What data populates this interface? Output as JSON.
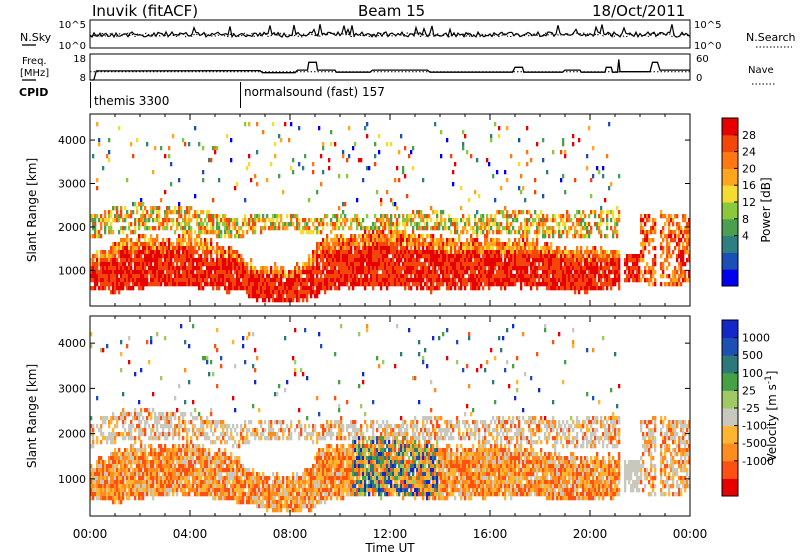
{
  "header": {
    "station": "Inuvik (fitACF)",
    "beam": "Beam 15",
    "date": "18/Oct/2011"
  },
  "chart_data": [
    {
      "type": "line",
      "panel": "noise",
      "series": [
        {
          "name": "N.Sky",
          "style": "solid",
          "level": "~10^3, fluctuating with frequent spikes toward 10^5"
        },
        {
          "name": "N.Search",
          "style": "dotted",
          "level": "~10^3, fluctuating"
        }
      ],
      "left_axis": {
        "label": "N.Sky",
        "ticks": [
          "10^5",
          "10^0"
        ]
      },
      "right_axis": {
        "label": "N.Search",
        "ticks": [
          "10^5",
          "10^0"
        ]
      }
    },
    {
      "type": "line",
      "panel": "frequency",
      "left_axis": {
        "label_line1": "Freq.",
        "label_line2": "[MHz]",
        "ticks": [
          "18",
          "8"
        ],
        "ylim": [
          8,
          18
        ]
      },
      "right_axis": {
        "label": "Nave",
        "ticks": [
          "60",
          "0"
        ],
        "ylim": [
          0,
          60
        ]
      },
      "freq_series": {
        "style": "solid",
        "points": [
          [
            0,
            8
          ],
          [
            0.15,
            8
          ],
          [
            0.25,
            11.5
          ],
          [
            6.8,
            11.6
          ],
          [
            6.9,
            10.8
          ],
          [
            8.2,
            10.8
          ],
          [
            8.3,
            11.8
          ],
          [
            8.7,
            11.8
          ],
          [
            8.75,
            14.8
          ],
          [
            9.05,
            14.8
          ],
          [
            9.1,
            11.8
          ],
          [
            9.8,
            11.8
          ],
          [
            9.85,
            11.0
          ],
          [
            11.2,
            11.0
          ],
          [
            11.3,
            11.8
          ],
          [
            13.5,
            11.8
          ],
          [
            13.6,
            11.0
          ],
          [
            16.9,
            11.0
          ],
          [
            17.0,
            12.9
          ],
          [
            17.3,
            12.9
          ],
          [
            17.35,
            11.0
          ],
          [
            18.9,
            11.0
          ],
          [
            19.0,
            11.8
          ],
          [
            19.6,
            11.8
          ],
          [
            19.65,
            11.0
          ],
          [
            20.6,
            11.0
          ],
          [
            20.65,
            12.9
          ],
          [
            20.85,
            12.9
          ],
          [
            20.9,
            11.0
          ],
          [
            21.1,
            11.0
          ],
          [
            21.15,
            15.9
          ],
          [
            21.2,
            11.2
          ],
          [
            22.4,
            11.2
          ],
          [
            22.5,
            14.8
          ],
          [
            22.7,
            14.8
          ],
          [
            22.8,
            11.8
          ],
          [
            24,
            11.8
          ]
        ]
      },
      "nave_series": {
        "style": "dotted",
        "approx_value": 19
      }
    },
    {
      "type": "table",
      "panel": "cpid",
      "label": "CPID",
      "entries": [
        {
          "start_hour": 0,
          "text": "themis 3300"
        },
        {
          "start_hour": 6,
          "text": "normalsound (fast) 157"
        }
      ]
    },
    {
      "type": "heatmap",
      "panel": "power",
      "ylabel": "Slant Range [km]",
      "ylim": [
        180,
        4600
      ],
      "yticks": [
        1000,
        2000,
        3000,
        4000
      ],
      "colorbar": {
        "label": "Power [dB]",
        "ticks": [
          "28",
          "24",
          "20",
          "16",
          "12",
          "8",
          "4"
        ],
        "colors": [
          "#0000ee",
          "#1a4fb6",
          "#2f7f80",
          "#4aa050",
          "#8cc83c",
          "#f5dc32",
          "#ffa51e",
          "#ff7812",
          "#f5460a",
          "#e60000"
        ]
      },
      "dominant_structure": "strong echoes 600-1500 km throughout; scattered 1500-3000 km; gaps near 21:15-22:00",
      "features": {
        "main_band": {
          "t": [
            0,
            1,
            2,
            3,
            4,
            5,
            5.9,
            6.3,
            7,
            7.8,
            8.5,
            9.1,
            9.6,
            10.5,
            11.5,
            12.5,
            13.5,
            14.5,
            15.5,
            16.5,
            17.5,
            18.5,
            19.5,
            20.5,
            21.2
          ],
          "lo": [
            600,
            500,
            580,
            640,
            660,
            580,
            520,
            420,
            300,
            260,
            300,
            420,
            560,
            620,
            640,
            600,
            560,
            560,
            600,
            620,
            640,
            560,
            520,
            560,
            600
          ],
          "hi": [
            1300,
            1600,
            1800,
            1700,
            1800,
            1600,
            1500,
            1200,
            1100,
            1000,
            1100,
            1600,
            1800,
            1800,
            1900,
            1900,
            1800,
            1700,
            1750,
            1700,
            1650,
            1550,
            1500,
            1450,
            1500
          ],
          "core": "power"
        },
        "upper_band": {
          "t": [
            0,
            1,
            2,
            3,
            4,
            5,
            5.9,
            6.3,
            7,
            8,
            9,
            10,
            11,
            12,
            13,
            14,
            15,
            16,
            17,
            18,
            19,
            20,
            21.2
          ],
          "lo": [
            1700,
            1800,
            1900,
            1900,
            1850,
            1800,
            1700,
            1800,
            1900,
            1900,
            1800,
            1900,
            1900,
            1850,
            1900,
            1900,
            1850,
            1800,
            1800,
            1750,
            1700,
            1700,
            1700
          ],
          "hi": [
            2300,
            2450,
            2550,
            2500,
            2450,
            2300,
            2200,
            2300,
            2300,
            2300,
            2200,
            2350,
            2300,
            2300,
            2350,
            2350,
            2300,
            2350,
            2400,
            2350,
            2300,
            2400,
            2450
          ]
        },
        "late_band": {
          "t": [
            22,
            22.5,
            23,
            23.5,
            24
          ],
          "lo": [
            700,
            650,
            600,
            650,
            700
          ],
          "hi": [
            2300,
            2350,
            2350,
            2300,
            2300
          ]
        },
        "blob": {
          "t0": 21.3,
          "t1": 22.5,
          "lo": 700,
          "hi": 1400
        }
      }
    },
    {
      "type": "heatmap",
      "panel": "velocity",
      "ylabel": "Slant Range [km]",
      "ylim": [
        180,
        4600
      ],
      "yticks": [
        1000,
        2000,
        3000,
        4000
      ],
      "colorbar": {
        "label": "Velocity [m s^-1]",
        "ticks": [
          "1000",
          "500",
          "100",
          "25",
          "-25",
          "-100",
          "-500",
          "-1000"
        ],
        "colors": [
          "#e60000",
          "#ff5014",
          "#ff8c1e",
          "#ffb432",
          "#c8c8be",
          "#a0c864",
          "#46a046",
          "#2d7878",
          "#1e50b4",
          "#1428c8"
        ]
      },
      "dominant_structure": "mostly orange/gray (negative/near-zero) with green-blue patches 11:00-14:00",
      "features": {
        "main_band": {
          "t": [
            0,
            1,
            2,
            3,
            4,
            5,
            5.9,
            6.3,
            7,
            7.8,
            8.5,
            9.1,
            9.6,
            10.5,
            11.5,
            12.5,
            13.5,
            14.5,
            15.5,
            16.5,
            17.5,
            18.5,
            19.5,
            20.5,
            21.2
          ],
          "lo": [
            600,
            500,
            580,
            640,
            660,
            580,
            520,
            420,
            300,
            260,
            300,
            420,
            560,
            620,
            640,
            600,
            560,
            560,
            600,
            620,
            640,
            560,
            520,
            560,
            600
          ],
          "hi": [
            1300,
            1600,
            1800,
            1700,
            1800,
            1600,
            1500,
            1200,
            1100,
            1000,
            1100,
            1600,
            1800,
            1800,
            1900,
            1900,
            1800,
            1700,
            1750,
            1700,
            1650,
            1550,
            1500,
            1450,
            1500
          ],
          "core": "velocity"
        },
        "upper_band": {
          "t": [
            0,
            1,
            2,
            3,
            4,
            5,
            5.9,
            6.3,
            7,
            8,
            9,
            10,
            11,
            12,
            13,
            14,
            15,
            16,
            17,
            18,
            19,
            20,
            21.2
          ],
          "lo": [
            1700,
            1800,
            1900,
            1900,
            1850,
            1800,
            1700,
            1800,
            1900,
            1900,
            1800,
            1900,
            1900,
            1850,
            1900,
            1900,
            1850,
            1800,
            1800,
            1750,
            1700,
            1700,
            1700
          ],
          "hi": [
            2300,
            2450,
            2550,
            2500,
            2450,
            2300,
            2200,
            2300,
            2300,
            2300,
            2200,
            2350,
            2300,
            2300,
            2350,
            2350,
            2300,
            2350,
            2400,
            2350,
            2300,
            2400,
            2450
          ]
        },
        "late_band": {
          "t": [
            22,
            22.5,
            23,
            23.5,
            24
          ],
          "lo": [
            700,
            650,
            600,
            650,
            700
          ],
          "hi": [
            2300,
            2350,
            2350,
            2300,
            2300
          ]
        },
        "blob": {
          "t0": 21.3,
          "t1": 22.5,
          "lo": 700,
          "hi": 1400
        }
      }
    }
  ],
  "time_axis": {
    "label": "Time UT",
    "xlim": [
      0,
      24
    ],
    "ticks": [
      {
        "hour": 0,
        "label": "00:00"
      },
      {
        "hour": 4,
        "label": "04:00"
      },
      {
        "hour": 8,
        "label": "08:00"
      },
      {
        "hour": 12,
        "label": "12:00"
      },
      {
        "hour": 16,
        "label": "16:00"
      },
      {
        "hour": 20,
        "label": "20:00"
      },
      {
        "hour": 24,
        "label": "00:00"
      }
    ]
  }
}
